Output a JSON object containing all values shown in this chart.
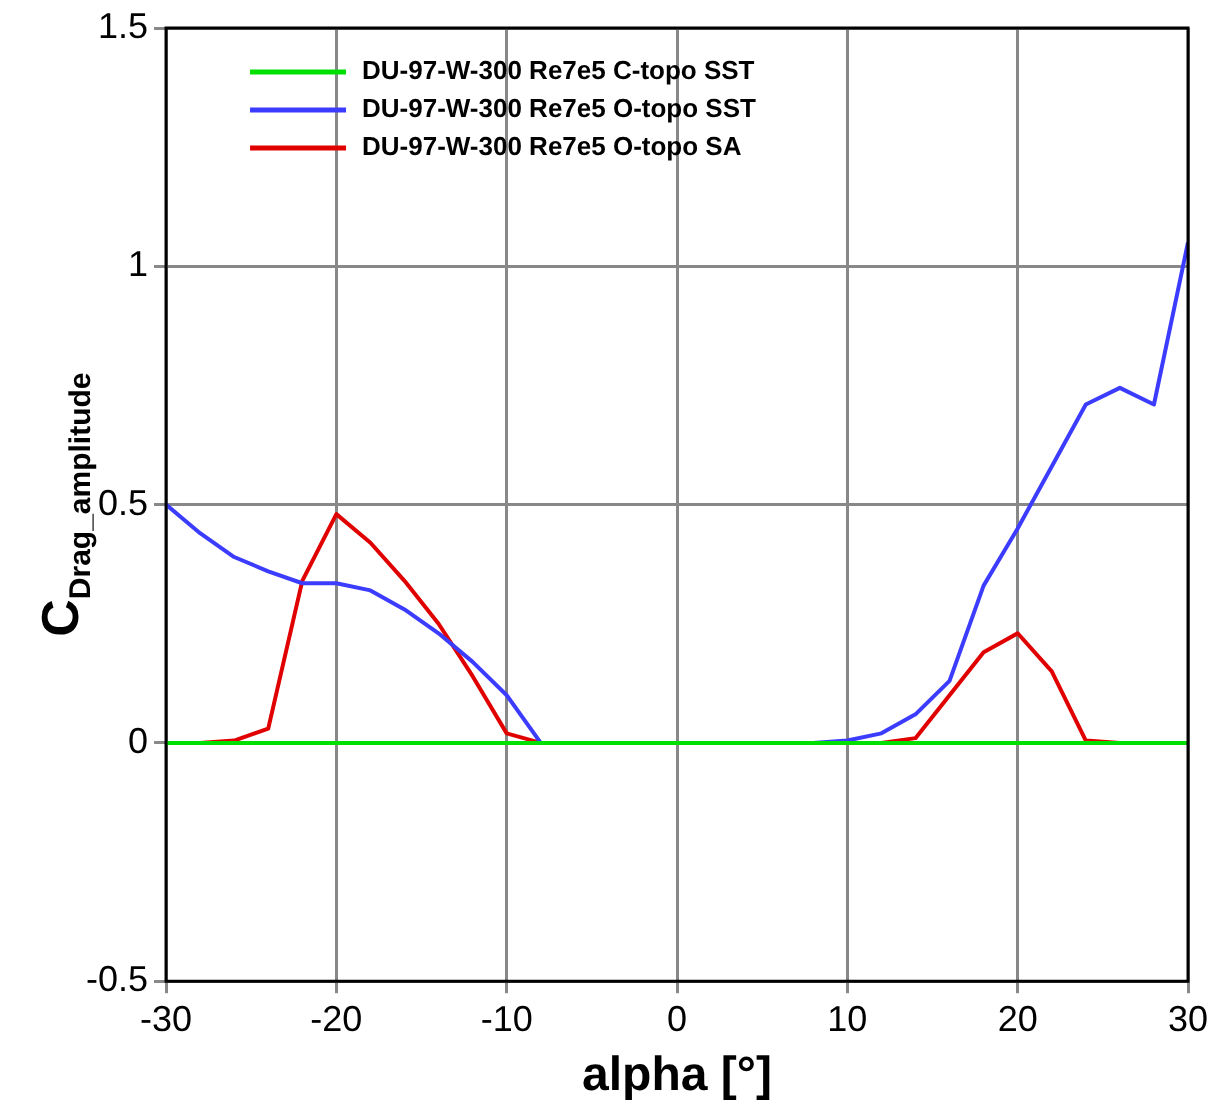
{
  "chart_data": {
    "type": "line",
    "xlabel": "alpha [°]",
    "ylabel": "C$_{Drag_amplitude}$",
    "x": [
      -30,
      -28,
      -26,
      -24,
      -22,
      -20,
      -18,
      -16,
      -14,
      -12,
      -10,
      -8,
      -6,
      -4,
      -2,
      0,
      2,
      4,
      6,
      8,
      10,
      12,
      14,
      16,
      18,
      20,
      22,
      24,
      26,
      28,
      30
    ],
    "series": [
      {
        "name": "DU-97-W-300 Re7e5 C-topo SST",
        "color": "#00e000",
        "values": [
          0,
          0,
          0,
          0,
          0,
          0,
          0,
          0,
          0,
          0,
          0,
          0,
          0,
          0,
          0,
          0,
          0,
          0,
          0,
          0,
          0,
          0,
          0,
          0,
          0,
          0,
          0,
          0,
          0,
          0,
          0
        ]
      },
      {
        "name": "DU-97-W-300 Re7e5 O-topo SST",
        "color": "#3c3cff",
        "values": [
          0.5,
          0.44,
          0.39,
          0.36,
          0.335,
          0.335,
          0.32,
          0.28,
          0.23,
          0.17,
          0.1,
          0,
          0,
          0,
          0,
          0,
          0,
          0,
          0,
          0,
          0.005,
          0.02,
          0.06,
          0.13,
          0.33,
          0.45,
          0.58,
          0.71,
          0.745,
          0.71,
          1.05
        ]
      },
      {
        "name": "DU-97-W-300 Re7e5 O-topo SA",
        "color": "#e00000",
        "values": [
          0,
          0,
          0.005,
          0.03,
          0.34,
          0.48,
          0.42,
          0.34,
          0.25,
          0.14,
          0.02,
          0,
          0,
          0,
          0,
          0,
          0,
          0,
          0,
          0,
          0,
          0,
          0.01,
          0.1,
          0.19,
          0.23,
          0.15,
          0.005,
          0,
          0,
          0
        ]
      }
    ],
    "xlim": [
      -30,
      30
    ],
    "xticks": [
      -30,
      -20,
      -10,
      0,
      10,
      20,
      30
    ],
    "ylim": [
      -0.5,
      1.5
    ],
    "yticks": [
      -0.5,
      0,
      0.5,
      1,
      1.5
    ],
    "grid": true,
    "legend": "top",
    "marker": "none",
    "line_style": "solid"
  }
}
